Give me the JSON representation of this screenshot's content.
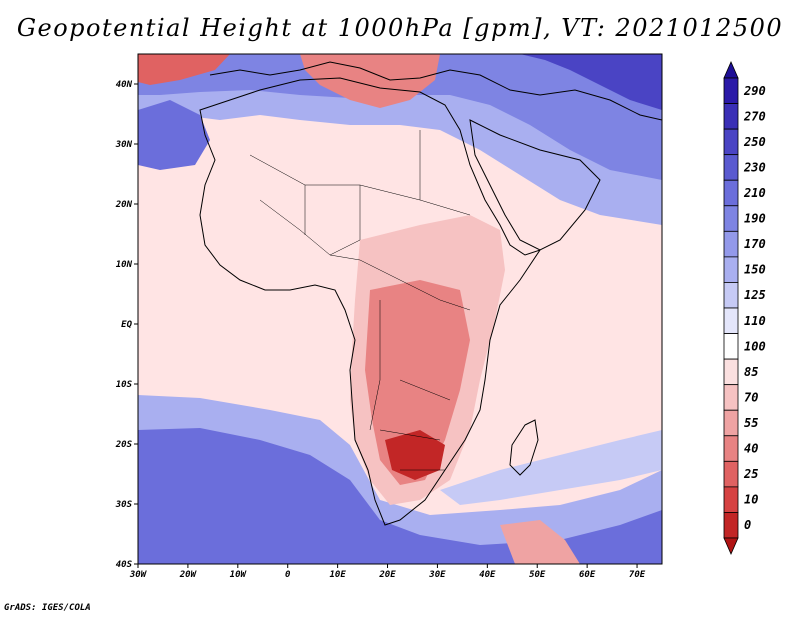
{
  "title": "Geopotential Height at 1000hPa [gpm], VT: 2021012500",
  "credit": "GrADS: IGES/COLA",
  "map": {
    "lon_range": [
      -30,
      75
    ],
    "lat_range": [
      -40,
      45
    ],
    "x_ticks": [
      {
        "lon": -30,
        "label": "30W"
      },
      {
        "lon": -20,
        "label": "20W"
      },
      {
        "lon": -10,
        "label": "10W"
      },
      {
        "lon": 0,
        "label": "0"
      },
      {
        "lon": 10,
        "label": "10E"
      },
      {
        "lon": 20,
        "label": "20E"
      },
      {
        "lon": 30,
        "label": "30E"
      },
      {
        "lon": 40,
        "label": "40E"
      },
      {
        "lon": 50,
        "label": "50E"
      },
      {
        "lon": 60,
        "label": "60E"
      },
      {
        "lon": 70,
        "label": "70E"
      }
    ],
    "y_ticks": [
      {
        "lat": 40,
        "label": "40N"
      },
      {
        "lat": 30,
        "label": "30N"
      },
      {
        "lat": 20,
        "label": "20N"
      },
      {
        "lat": 10,
        "label": "10N"
      },
      {
        "lat": 0,
        "label": "EQ"
      },
      {
        "lat": -10,
        "label": "10S"
      },
      {
        "lat": -20,
        "label": "20S"
      },
      {
        "lat": -30,
        "label": "30S"
      },
      {
        "lat": -40,
        "label": "40S"
      }
    ]
  },
  "colorbar": {
    "levels": [
      "290",
      "270",
      "250",
      "230",
      "210",
      "190",
      "170",
      "150",
      "125",
      "110",
      "100",
      "85",
      "70",
      "55",
      "40",
      "25",
      "10",
      "0"
    ],
    "colors": [
      "#2b1aa8",
      "#3a2fb6",
      "#4a44c4",
      "#5a5ad0",
      "#6b6edb",
      "#7e84e3",
      "#9399ea",
      "#a9aff0",
      "#c6caf5",
      "#e4e6fb",
      "#ffffff",
      "#fbe0e0",
      "#f6c2c2",
      "#efa3a3",
      "#e88383",
      "#e06262",
      "#d64242",
      "#c22626"
    ],
    "top_arrow_color": "#1e0f96",
    "bottom_arrow_color": "#b01414"
  }
}
